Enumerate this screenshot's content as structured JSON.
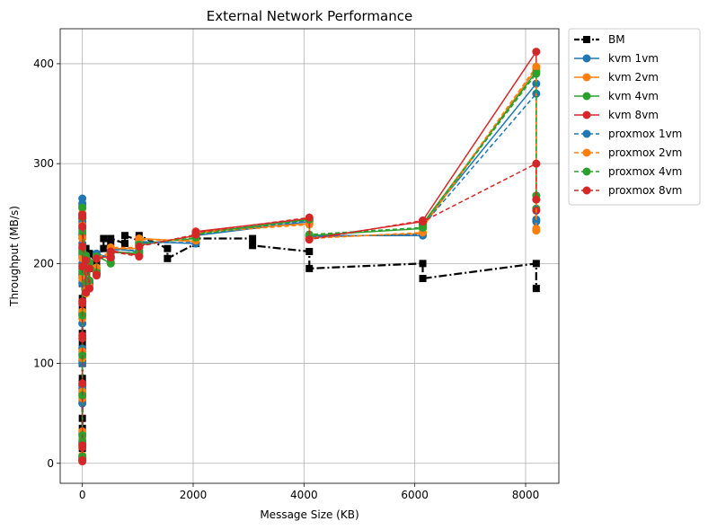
{
  "chart_data": {
    "type": "line",
    "title": "External Network Performance",
    "xlabel": "Message Size (KB)",
    "ylabel": "Throughput (MB/s)",
    "xlim": [
      -400,
      8600
    ],
    "ylim": [
      -20,
      435
    ],
    "xticks": [
      0,
      2000,
      4000,
      6000,
      8000
    ],
    "yticks": [
      0,
      100,
      200,
      300,
      400
    ],
    "grid": true,
    "legend_position": "outside-top-right",
    "series": [
      {
        "name": "BM",
        "color": "#000000",
        "linestyle": "dashdot",
        "marker": "square",
        "x": [
          0,
          0,
          0,
          0,
          0,
          0,
          0,
          0,
          0,
          0,
          0,
          0,
          0,
          0,
          0,
          0,
          64,
          64,
          128,
          128,
          256,
          256,
          384,
          384,
          512,
          512,
          768,
          768,
          1024,
          1024,
          1536,
          1536,
          2048,
          2048,
          3072,
          3072,
          4096,
          4096,
          6144,
          6144,
          8192,
          8192
        ],
        "y": [
          5,
          15,
          25,
          35,
          45,
          62,
          68,
          80,
          85,
          100,
          105,
          120,
          130,
          155,
          165,
          180,
          200,
          215,
          195,
          210,
          200,
          205,
          215,
          225,
          220,
          225,
          220,
          228,
          223,
          228,
          215,
          205,
          220,
          225,
          225,
          218,
          212,
          195,
          200,
          185,
          200,
          175
        ]
      },
      {
        "name": "kvm 1vm",
        "color": "#1f77b4",
        "linestyle": "solid",
        "marker": "circle",
        "x": [
          0,
          0,
          0,
          0,
          0,
          0,
          0,
          0,
          0,
          0,
          64,
          64,
          128,
          128,
          256,
          256,
          512,
          512,
          1024,
          1024,
          2048,
          2048,
          4096,
          4096,
          6144,
          6144,
          8192,
          8192
        ],
        "y": [
          3,
          20,
          60,
          100,
          140,
          180,
          200,
          220,
          245,
          265,
          185,
          205,
          178,
          198,
          192,
          210,
          205,
          215,
          212,
          222,
          220,
          228,
          242,
          228,
          228,
          240,
          380,
          244
        ]
      },
      {
        "name": "kvm 2vm",
        "color": "#ff7f0e",
        "linestyle": "solid",
        "marker": "circle",
        "x": [
          0,
          0,
          0,
          0,
          0,
          0,
          0,
          0,
          0,
          0,
          64,
          64,
          128,
          128,
          256,
          256,
          512,
          512,
          1024,
          1024,
          2048,
          2048,
          4096,
          4096,
          6144,
          6144,
          8192,
          8192
        ],
        "y": [
          5,
          25,
          65,
          105,
          145,
          185,
          205,
          225,
          240,
          255,
          170,
          200,
          175,
          195,
          195,
          205,
          210,
          215,
          215,
          225,
          222,
          232,
          240,
          226,
          230,
          236,
          395,
          235
        ]
      },
      {
        "name": "kvm 4vm",
        "color": "#2ca02c",
        "linestyle": "solid",
        "marker": "circle",
        "x": [
          0,
          0,
          0,
          0,
          0,
          0,
          0,
          0,
          0,
          0,
          64,
          64,
          128,
          128,
          256,
          256,
          512,
          512,
          1024,
          1024,
          2048,
          2048,
          4096,
          4096,
          6144,
          6144,
          8192,
          8192
        ],
        "y": [
          4,
          22,
          70,
          110,
          150,
          190,
          210,
          230,
          250,
          258,
          180,
          208,
          182,
          200,
          190,
          208,
          200,
          212,
          210,
          220,
          225,
          230,
          244,
          228,
          235,
          240,
          392,
          255
        ]
      },
      {
        "name": "kvm 8vm",
        "color": "#d62728",
        "linestyle": "solid",
        "marker": "circle",
        "x": [
          0,
          0,
          0,
          0,
          0,
          0,
          0,
          0,
          0,
          0,
          64,
          64,
          128,
          128,
          256,
          256,
          512,
          512,
          1024,
          1024,
          2048,
          2048,
          4096,
          4096,
          6144,
          6144,
          8192,
          8192
        ],
        "y": [
          2,
          18,
          78,
          125,
          160,
          195,
          215,
          235,
          248,
          245,
          172,
          202,
          176,
          196,
          188,
          206,
          207,
          213,
          208,
          218,
          228,
          232,
          245,
          225,
          242,
          243,
          412,
          253
        ]
      },
      {
        "name": "proxmox 1vm",
        "color": "#1f77b4",
        "linestyle": "dashed",
        "marker": "circle",
        "x": [
          0,
          0,
          0,
          0,
          0,
          0,
          0,
          0,
          0,
          0,
          64,
          64,
          128,
          128,
          256,
          256,
          512,
          512,
          1024,
          1024,
          2048,
          2048,
          4096,
          4096,
          6144,
          6144,
          8192,
          8192
        ],
        "y": [
          6,
          30,
          75,
          115,
          150,
          188,
          208,
          228,
          242,
          260,
          182,
          206,
          180,
          199,
          193,
          209,
          206,
          214,
          213,
          221,
          221,
          229,
          243,
          227,
          229,
          238,
          370,
          242
        ]
      },
      {
        "name": "proxmox 2vm",
        "color": "#ff7f0e",
        "linestyle": "dashed",
        "marker": "circle",
        "x": [
          0,
          0,
          0,
          0,
          0,
          0,
          0,
          0,
          0,
          0,
          64,
          64,
          128,
          128,
          256,
          256,
          512,
          512,
          1024,
          1024,
          2048,
          2048,
          4096,
          4096,
          6144,
          6144,
          8192,
          8192
        ],
        "y": [
          8,
          32,
          72,
          112,
          152,
          186,
          206,
          226,
          238,
          250,
          173,
          201,
          177,
          197,
          196,
          206,
          211,
          216,
          216,
          224,
          223,
          231,
          239,
          225,
          231,
          237,
          397,
          233
        ]
      },
      {
        "name": "proxmox 4vm",
        "color": "#2ca02c",
        "linestyle": "dashed",
        "marker": "circle",
        "x": [
          0,
          0,
          0,
          0,
          0,
          0,
          0,
          0,
          0,
          0,
          64,
          64,
          128,
          128,
          256,
          256,
          512,
          512,
          1024,
          1024,
          2048,
          2048,
          4096,
          4096,
          6144,
          6144,
          8192,
          8192
        ],
        "y": [
          7,
          28,
          68,
          108,
          148,
          192,
          212,
          232,
          246,
          256,
          181,
          207,
          183,
          201,
          191,
          207,
          201,
          211,
          211,
          219,
          226,
          229,
          244,
          229,
          236,
          239,
          390,
          268
        ]
      },
      {
        "name": "proxmox 8vm",
        "color": "#d62728",
        "linestyle": "dashed",
        "marker": "circle",
        "x": [
          0,
          0,
          0,
          0,
          0,
          0,
          0,
          0,
          0,
          0,
          64,
          64,
          128,
          128,
          256,
          256,
          512,
          512,
          1024,
          1024,
          2048,
          2048,
          4096,
          4096,
          6144,
          6144,
          8192,
          8192
        ],
        "y": [
          3,
          16,
          80,
          128,
          162,
          197,
          217,
          237,
          249,
          247,
          171,
          203,
          175,
          195,
          189,
          205,
          206,
          212,
          207,
          217,
          229,
          231,
          246,
          224,
          243,
          242,
          300,
          264
        ]
      }
    ]
  }
}
